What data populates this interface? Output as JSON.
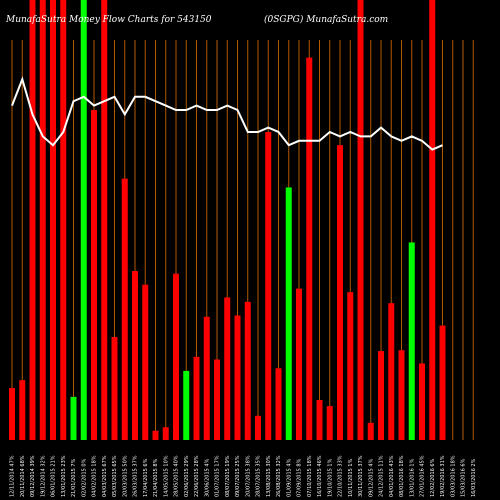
{
  "chart_data": {
    "type": "bar",
    "title": "MunafaSutra  Money Flow  Charts for 543150",
    "subtitle": "(0SGPG) MunafaSutra.com",
    "colors": {
      "background": "#000000",
      "inflow": "#ff0000",
      "outflow": "#00ff00",
      "gridline": "#b35900",
      "line": "#ffffff"
    },
    "ylim": [
      0,
      100
    ],
    "categories": [
      "12/11/2014 47%",
      "20/11/2014 68%",
      "09/12/2014 39%",
      "19/12/2014 32%",
      "06/01/2015 21%",
      "13/01/2015 23%",
      "21/01/2015 7%",
      "02/02/2015 0%",
      "04/02/2015 18%",
      "04/03/2015 67%",
      "05/03/2015 65%",
      "20/03/2015 50%",
      "26/03/2015 37%",
      "17/04/2015 6%",
      "21/04/2015 8%",
      "14/05/2015 10%",
      "28/05/2015 40%",
      "02/06/2015 29%",
      "22/06/2015 28%",
      "30/06/2015 4%",
      "01/07/2015 17%",
      "08/07/2015 19%",
      "09/07/2015 25%",
      "20/07/2015 38%",
      "28/07/2015 35%",
      "13/08/2015 30%",
      "26/08/2015 32%",
      "01/09/2015 4%",
      "07/09/2015 8%",
      "07/10/2015 18%",
      "16/10/2015 46%",
      "19/10/2015 1%",
      "22/10/2015 33%",
      "10/11/2015 1%",
      "30/11/2015 37%",
      "09/12/2015 4%",
      "24/12/2015 11%",
      "04/01/2016 43%",
      "08/01/2016 18%",
      "13/01/2016 1%",
      "27/01/2016 45%",
      "12/02/2016 6%",
      "19/02/2016 31%",
      "03/03/2016 18%",
      "15/03/2016 6%",
      "16/03/2016 2%"
    ],
    "series": [
      {
        "colors": [
          "red",
          "red",
          "red",
          "red",
          "red",
          "red",
          "green",
          "green",
          "red",
          "red",
          "red",
          "red",
          "red",
          "red",
          "red",
          "red",
          "red",
          "green",
          "red",
          "red",
          "red",
          "red",
          "red",
          "red",
          "red",
          "red",
          "red",
          "green",
          "red",
          "red",
          "red",
          "red",
          "red",
          "red",
          "red",
          "red",
          "red",
          "red",
          "red",
          "green",
          "red",
          "red",
          "red",
          "red",
          "red",
          "red"
        ],
        "values": [
          11.8,
          13.6,
          100,
          100,
          100,
          100,
          9.8,
          100,
          75,
          100,
          23.4,
          59.4,
          38.4,
          35.3,
          2.1,
          2.9,
          37.8,
          15.7,
          18.9,
          28,
          18.3,
          32.4,
          28.3,
          31.4,
          5.5,
          70,
          16.3,
          57.4,
          34.4,
          86.9,
          9.1,
          7.7,
          67,
          33.6,
          100,
          3.9,
          20.2,
          31.1,
          20.4,
          44.9,
          17.4,
          100,
          26,
          0,
          0,
          0
        ]
      },
      {
        "values": [
          76,
          82,
          74,
          69,
          67,
          70,
          77,
          78,
          76,
          77,
          78,
          74,
          78,
          78,
          77,
          76,
          75,
          75,
          76,
          75,
          75,
          76,
          75,
          70,
          70,
          71,
          70,
          67,
          68,
          68,
          68,
          70,
          69,
          70,
          69,
          69,
          71,
          69,
          68,
          69,
          68,
          66,
          67,
          0,
          0,
          0
        ]
      }
    ]
  }
}
